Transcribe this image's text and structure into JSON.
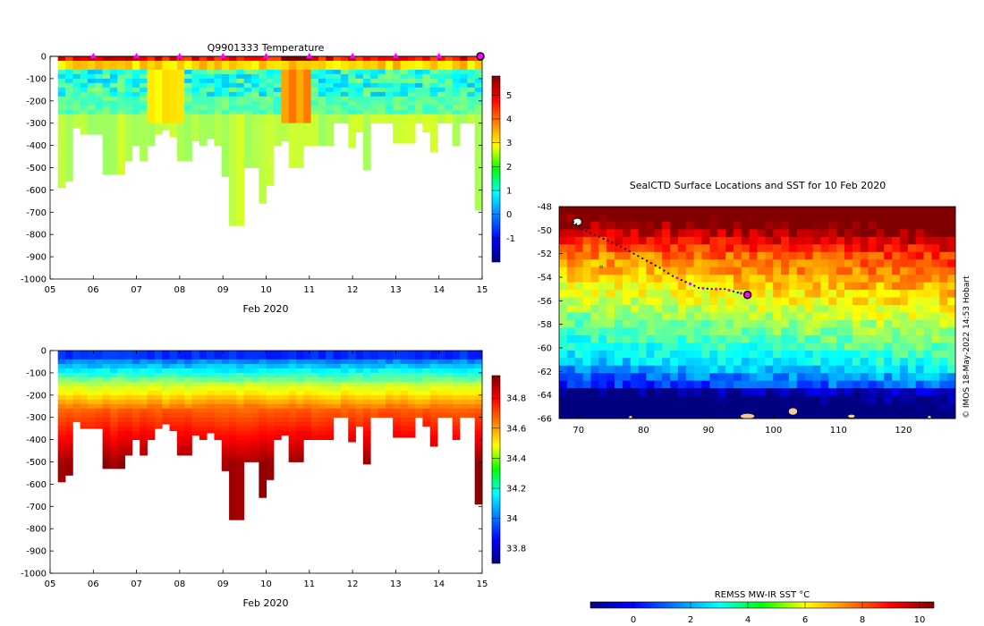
{
  "figure_title": "Q9901333  Temperature",
  "map_title": "SealCTD Surface Locations and SST for 10 Feb 2020",
  "credit": "© IMOS 18-May-2022 14:53 Hobart",
  "sst_label": "REMSS MW-IR SST °C",
  "colors": {
    "marker": "#ff00ff",
    "track": "#000000",
    "land": "#f2c9a0",
    "deep_ocean": "#00007f",
    "missing": "#ffffff",
    "axes": "#000000"
  },
  "chart_data": [
    {
      "type": "heatmap",
      "name": "temperature_section",
      "title": "Q9901333  Temperature",
      "xlabel": "Feb 2020",
      "ylabel": "",
      "x_ticks": [
        "05",
        "06",
        "07",
        "08",
        "09",
        "10",
        "11",
        "12",
        "13",
        "14",
        "15"
      ],
      "y_ticks": [
        "0",
        "-100",
        "-200",
        "-300",
        "-400",
        "-500",
        "-600",
        "-700",
        "-800",
        "-900",
        "-1000"
      ],
      "xlim": [
        5,
        15
      ],
      "ylim": [
        -1000,
        0
      ],
      "colorbar": {
        "ticks": [
          "-1",
          "0",
          "1",
          "2",
          "3",
          "4",
          "5"
        ],
        "range": [
          -2,
          5.8
        ],
        "colormap": "jet"
      },
      "profile_depths": [
        590,
        560,
        320,
        350,
        350,
        350,
        530,
        530,
        530,
        470,
        400,
        470,
        400,
        350,
        330,
        360,
        470,
        470,
        380,
        400,
        370,
        400,
        540,
        760,
        760,
        500,
        500,
        660,
        580,
        400,
        380,
        500,
        500,
        400,
        400,
        400,
        400,
        300,
        300,
        410,
        340,
        510,
        300,
        300,
        300,
        390,
        390,
        390,
        300,
        340,
        430,
        300,
        300,
        400,
        300,
        300,
        690
      ],
      "surface_markers_day": [
        6,
        7,
        8,
        9,
        10,
        11,
        12,
        13,
        14
      ],
      "current_position_day": 15
    },
    {
      "type": "heatmap",
      "name": "salinity_section",
      "title": "",
      "xlabel": "Feb 2020",
      "ylabel": "",
      "x_ticks": [
        "05",
        "06",
        "07",
        "08",
        "09",
        "10",
        "11",
        "12",
        "13",
        "14",
        "15"
      ],
      "y_ticks": [
        "0",
        "-100",
        "-200",
        "-300",
        "-400",
        "-500",
        "-600",
        "-700",
        "-800",
        "-900",
        "-1000"
      ],
      "xlim": [
        5,
        15
      ],
      "ylim": [
        -1000,
        0
      ],
      "colorbar": {
        "ticks": [
          "33.8",
          "34",
          "34.2",
          "34.4",
          "34.6",
          "34.8"
        ],
        "range": [
          33.7,
          34.95
        ],
        "colormap": "jet"
      },
      "profile_depths": [
        590,
        560,
        320,
        350,
        350,
        350,
        530,
        530,
        530,
        470,
        400,
        470,
        400,
        350,
        330,
        360,
        470,
        470,
        380,
        400,
        370,
        400,
        540,
        760,
        760,
        500,
        500,
        660,
        580,
        400,
        380,
        500,
        500,
        400,
        400,
        400,
        400,
        300,
        300,
        410,
        340,
        510,
        300,
        300,
        300,
        390,
        390,
        390,
        300,
        340,
        430,
        300,
        300,
        400,
        300,
        300,
        690
      ]
    },
    {
      "type": "map",
      "name": "sst_map",
      "title": "SealCTD Surface Locations and SST for 10 Feb 2020",
      "x_ticks": [
        "70",
        "80",
        "90",
        "100",
        "110",
        "120"
      ],
      "y_ticks": [
        "-48",
        "-50",
        "-52",
        "-54",
        "-56",
        "-58",
        "-60",
        "-62",
        "-64",
        "-66"
      ],
      "xlim": [
        67,
        128
      ],
      "ylim": [
        -66,
        -48
      ],
      "track": [
        [
          69.2,
          -49.3
        ],
        [
          70.5,
          -49.9
        ],
        [
          72.5,
          -50.4
        ],
        [
          74.5,
          -50.9
        ],
        [
          76.5,
          -51.4
        ],
        [
          78.5,
          -52.0
        ],
        [
          80.5,
          -52.6
        ],
        [
          82.5,
          -53.2
        ],
        [
          84.5,
          -53.9
        ],
        [
          86.5,
          -54.4
        ],
        [
          88.5,
          -54.9
        ],
        [
          90.5,
          -55.0
        ],
        [
          92.5,
          -55.0
        ],
        [
          94.5,
          -55.3
        ],
        [
          96.0,
          -55.5
        ]
      ],
      "current_position": [
        96.0,
        -55.5
      ],
      "colorbar": {
        "label": "REMSS MW-IR SST °C",
        "ticks": [
          "0",
          "2",
          "4",
          "6",
          "8",
          "10"
        ],
        "range": [
          -1.5,
          10.5
        ],
        "colormap": "jet"
      }
    }
  ]
}
